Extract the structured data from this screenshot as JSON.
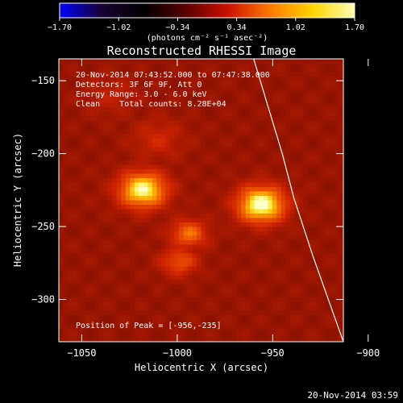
{
  "chart_data": {
    "type": "heatmap",
    "title": "Reconstructed RHESSI Image",
    "colorbar": {
      "ticks": [
        "-1.70",
        "-1.02",
        "-0.34",
        "0.34",
        "1.02",
        "1.70"
      ],
      "unit_label": "(photons cm⁻² s⁻¹ asec⁻²)",
      "range": [
        -1.7,
        1.7
      ],
      "colormap": [
        "#0000ff",
        "#1a0033",
        "#000000",
        "#5a0000",
        "#cc1100",
        "#ff7a00",
        "#ffd400",
        "#ffffb0"
      ]
    },
    "xlabel": "Heliocentric X (arcsec)",
    "ylabel": "Heliocentric Y (arcsec)",
    "xlim": [
      -1062,
      -913
    ],
    "ylim": [
      -329,
      -135
    ],
    "xticks": [
      {
        "value": -1050,
        "label": "−1050"
      },
      {
        "value": -1000,
        "label": "−1000"
      },
      {
        "value": -950,
        "label": "−950"
      },
      {
        "value": -900,
        "label": "−900"
      }
    ],
    "yticks": [
      {
        "value": -150,
        "label": "−150"
      },
      {
        "value": -200,
        "label": "−200"
      },
      {
        "value": -250,
        "label": "−250"
      },
      {
        "value": -300,
        "label": "−300"
      }
    ],
    "annotations": {
      "line1": "20-Nov-2014 07:43:52.000 to 07:47:38.000",
      "line2": "Detectors: 3F 6F 9F, Att 0",
      "line3": "Energy Range: 3.0 - 6.0 keV",
      "line4": "Clean    Total counts: 8.28E+04",
      "peak": "Position of Peak = [-956,-235]"
    },
    "sources": [
      {
        "x": -956,
        "y": -235,
        "intensity": 1.0
      },
      {
        "x": -1018,
        "y": -225,
        "intensity": 0.93
      },
      {
        "x": -994,
        "y": -255,
        "intensity": 0.55
      },
      {
        "x": -999,
        "y": -274,
        "intensity": 0.45
      },
      {
        "x": -1010,
        "y": -190,
        "intensity": 0.25
      },
      {
        "x": -1035,
        "y": -160,
        "intensity": 0.18
      }
    ],
    "limb": [
      [
        -960,
        -135
      ],
      [
        -945,
        -200
      ],
      [
        -939,
        -230
      ],
      [
        -929,
        -270
      ],
      [
        -913,
        -329
      ]
    ],
    "grid": false
  },
  "footer": {
    "timestamp": "20-Nov-2014 03:59"
  }
}
